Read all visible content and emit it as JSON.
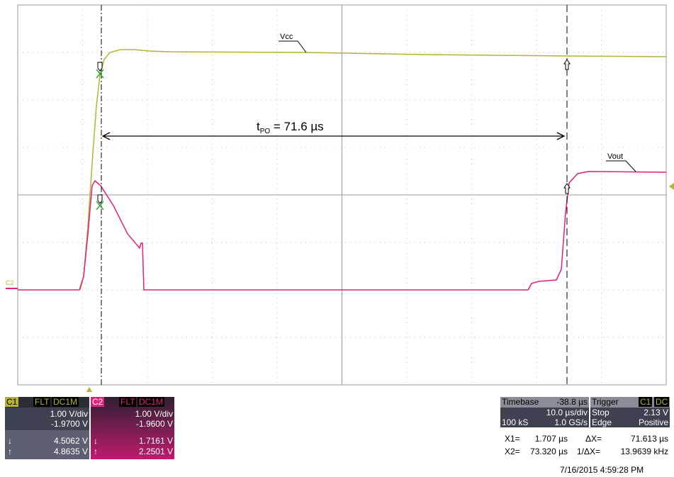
{
  "screen": {
    "plot": {
      "vcc_label": "Vcc",
      "vout_label": "Vout",
      "channel_marker": "C2",
      "measurement": {
        "t": "t",
        "sub": "PO",
        "text": " = 71.6 µs"
      }
    },
    "c1": {
      "name": "C1",
      "flt": "FLT",
      "coupling": "DC1M",
      "scale": "1.00 V/div",
      "offset": "-1.9700 V",
      "down_sym": "↓",
      "down": "4.5062 V",
      "up_sym": "↑",
      "up": "4.8635 V"
    },
    "c2": {
      "name": "C2",
      "flt": "FLT",
      "coupling": "DC1M",
      "scale": "1.00 V/div",
      "offset": "-1.9600 V",
      "down_sym": "↓",
      "down": "1.7161 V",
      "up_sym": "↑",
      "up": "2.2501 V"
    },
    "timebase": {
      "label": "Timebase",
      "delay": "-38.8 µs",
      "scale": "10.0 µs/div",
      "samples": "100 kS",
      "rate": "1.0 GS/s"
    },
    "trigger": {
      "label": "Trigger",
      "source": "C1",
      "coupling": "DC",
      "mode": "Stop",
      "level": "2.13 V",
      "type": "Edge",
      "slope": "Positive"
    },
    "cursors": {
      "x1_label": "X1=",
      "x1": "1.707 µs",
      "dx_label": "ΔX=",
      "dx": "71.613 µs",
      "x2_label": "X2=",
      "x2": "73.320 µs",
      "inv_label": "1/ΔX=",
      "inv": "13.9639 kHz"
    },
    "timestamp": "7/16/2015 4:59:28 PM"
  }
}
